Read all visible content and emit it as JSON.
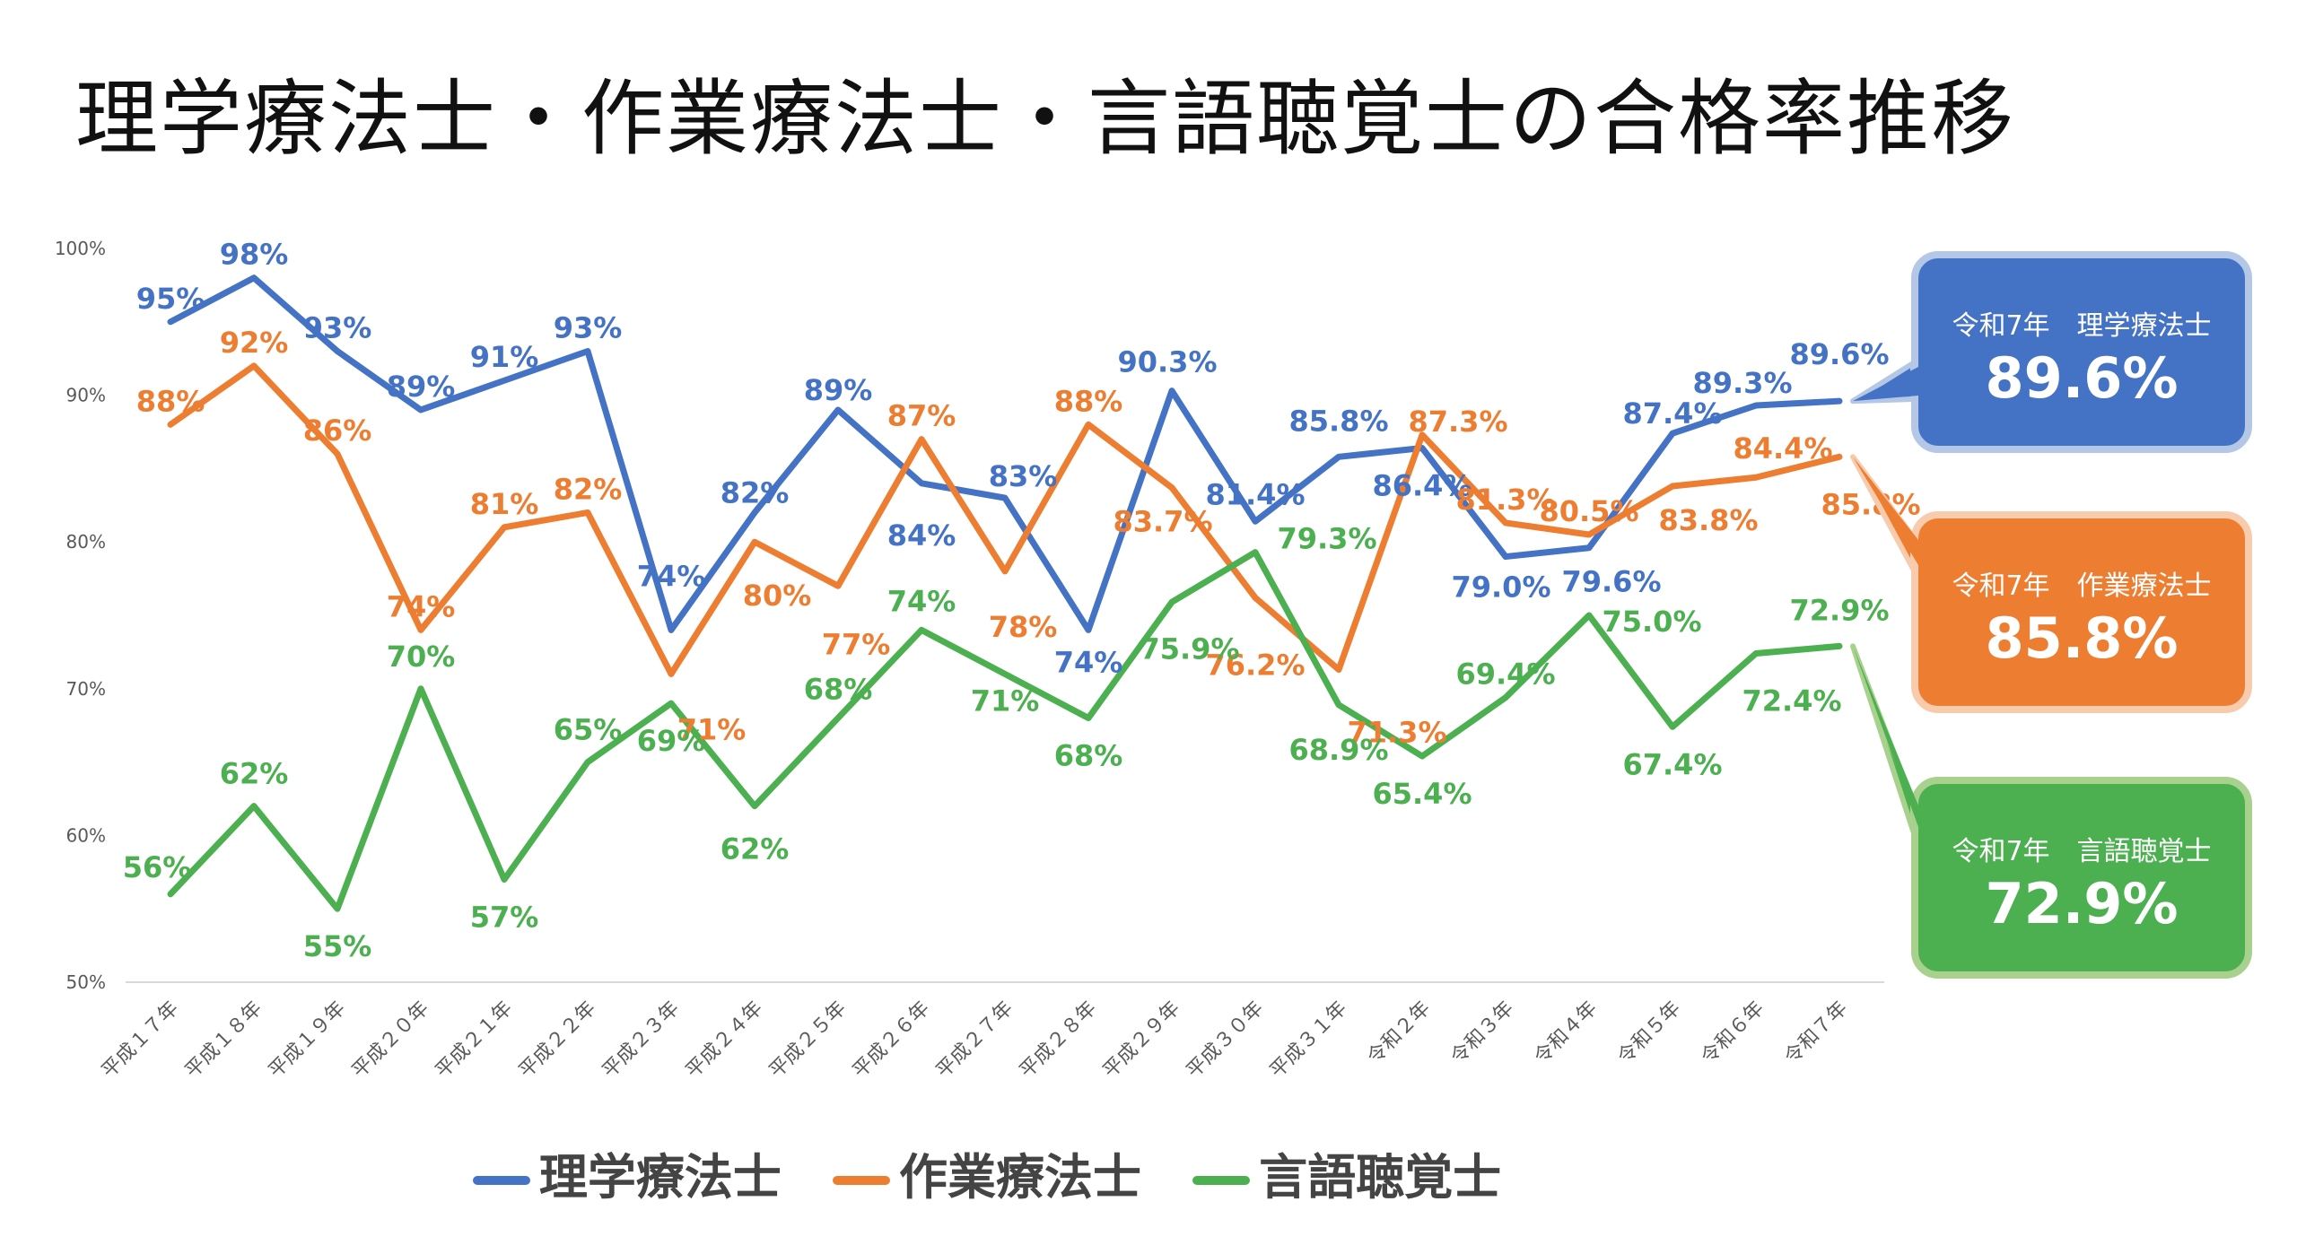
{
  "chart_data": {
    "type": "line",
    "title": "理学療法士・作業療法士・言語聴覚士の合格率推移",
    "categories": [
      "平成１７年",
      "平成１８年",
      "平成１９年",
      "平成２０年",
      "平成２１年",
      "平成２２年",
      "平成２３年",
      "平成２４年",
      "平成２５年",
      "平成２６年",
      "平成２７年",
      "平成２８年",
      "平成２９年",
      "平成３０年",
      "平成３１年",
      "令和２年",
      "令和３年",
      "令和４年",
      "令和５年",
      "令和６年",
      "令和７年"
    ],
    "y_ticks": [
      "50%",
      "60%",
      "70%",
      "80%",
      "90%",
      "100%"
    ],
    "ylim": [
      50,
      100
    ],
    "series": [
      {
        "name": "理学療法士",
        "color": "#4472C4",
        "values": [
          95,
          98,
          93,
          89,
          91,
          93,
          74,
          82,
          89,
          84,
          83,
          74,
          90.3,
          81.4,
          85.8,
          86.4,
          79.0,
          79.6,
          87.4,
          89.3,
          89.6
        ],
        "labels": [
          "95%",
          "98%",
          "93%",
          "89%",
          "91%",
          "93%",
          "74%",
          "82%",
          "89%",
          "84%",
          "83%",
          "74%",
          "90.3%",
          "81.4%",
          "85.8%",
          "86.4%",
          "79.0%",
          "79.6%",
          "87.4%",
          "89.3%",
          "89.6%"
        ]
      },
      {
        "name": "作業療法士",
        "color": "#ED7D31",
        "values": [
          88,
          92,
          86,
          74,
          81,
          82,
          71,
          80,
          77,
          87,
          78,
          88,
          83.7,
          76.2,
          71.3,
          87.3,
          81.3,
          80.5,
          83.8,
          84.4,
          85.8
        ],
        "labels": [
          "88%",
          "92%",
          "86%",
          "74%",
          "81%",
          "82%",
          "71%",
          "80%",
          "77%",
          "87%",
          "78%",
          "88%",
          "83.7%",
          "76.2%",
          "71.3%",
          "87.3%",
          "81.3%",
          "80.5%",
          "83.8%",
          "84.4%",
          "85.8%"
        ]
      },
      {
        "name": "言語聴覚士",
        "color": "#4CAF50",
        "values": [
          56,
          62,
          55,
          70,
          57,
          65,
          69,
          62,
          68,
          74,
          71,
          68,
          75.9,
          79.3,
          68.9,
          65.4,
          69.4,
          75.0,
          67.4,
          72.4,
          72.9
        ],
        "labels": [
          "56%",
          "62%",
          "55%",
          "70%",
          "57%",
          "65%",
          "69%",
          "62%",
          "68%",
          "74%",
          "71%",
          "68%",
          "75.9%",
          "79.3%",
          "68.9%",
          "65.4%",
          "69.4%",
          "75.0%",
          "67.4%",
          "72.4%",
          "72.9%"
        ]
      }
    ],
    "legend": "bottom"
  },
  "callouts": [
    {
      "label": "令和7年　理学療法士",
      "value": "89.6%",
      "color": "#4472C4",
      "border": "#B4C7E7"
    },
    {
      "label": "令和7年　作業療法士",
      "value": "85.8%",
      "color": "#ED7D31",
      "border": "#F8CBAD"
    },
    {
      "label": "令和7年　言語聴覚士",
      "value": "72.9%",
      "color": "#4CAF50",
      "border": "#A9D18E"
    }
  ]
}
